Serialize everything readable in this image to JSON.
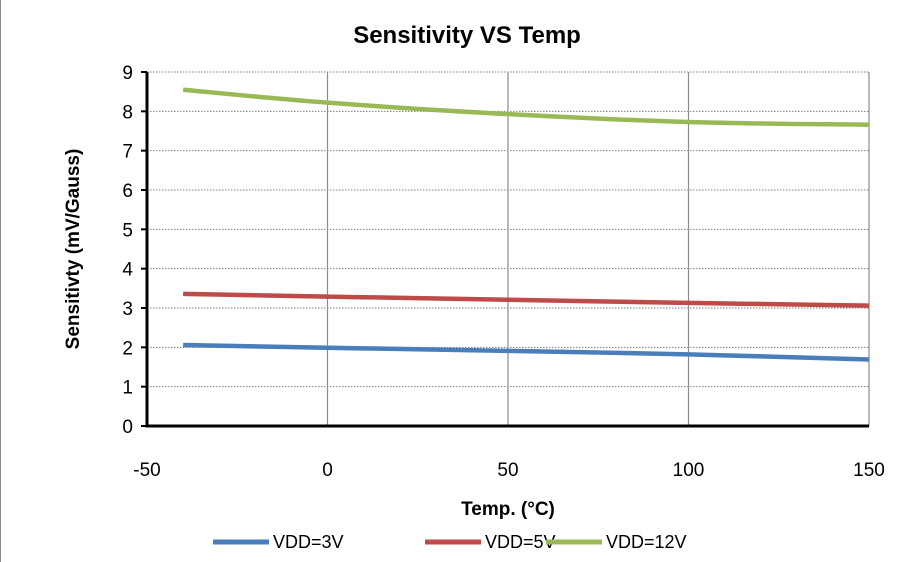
{
  "chart_data": {
    "type": "line",
    "title": "Sensitivity VS Temp",
    "xlabel": "Temp. (°C)",
    "ylabel": "Sensitivty (mV/Gauss)",
    "xlim": [
      -50,
      150
    ],
    "ylim": [
      0,
      9
    ],
    "x_ticks": [
      -50,
      0,
      50,
      100,
      150
    ],
    "y_ticks": [
      0,
      1,
      2,
      3,
      4,
      5,
      6,
      7,
      8,
      9
    ],
    "x_tick_labels": [
      "-50",
      "0",
      "50",
      "100",
      "150"
    ],
    "y_tick_labels": [
      "0",
      "1",
      "2",
      "3",
      "4",
      "5",
      "6",
      "7",
      "8",
      "9"
    ],
    "grid": {
      "horizontal": "dotted",
      "vertical": "solid"
    },
    "legend_position": "bottom",
    "series": [
      {
        "name": "VDD=3V",
        "color": "#4a7ebb",
        "x": [
          -40,
          0,
          50,
          100,
          150
        ],
        "y": [
          2.06,
          1.99,
          1.91,
          1.82,
          1.69
        ]
      },
      {
        "name": "VDD=5V",
        "color": "#be4b48",
        "x": [
          -40,
          0,
          50,
          100,
          150
        ],
        "y": [
          3.36,
          3.29,
          3.21,
          3.13,
          3.06
        ]
      },
      {
        "name": "VDD=12V",
        "color": "#98b954",
        "x": [
          -40,
          0,
          50,
          100,
          150
        ],
        "y": [
          8.55,
          8.22,
          7.93,
          7.73,
          7.66
        ]
      }
    ]
  }
}
